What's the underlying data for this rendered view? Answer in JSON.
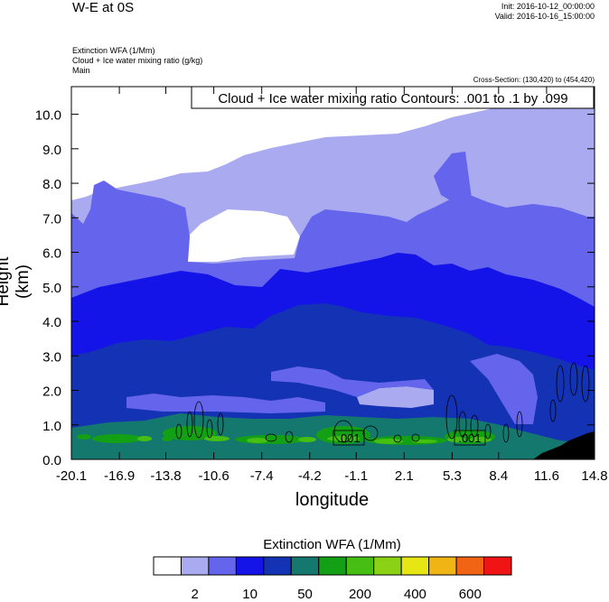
{
  "header": {
    "title": "W-E at 0S",
    "init": "Init: 2016-10-12_00:00:00",
    "valid": "Valid: 2016-10-16_15:00:00",
    "field1": "Extinction WFA   (1/Mm)",
    "field2": "Cloud + Ice water mixing ratio   (g/kg)",
    "field3": "Main",
    "cross_section": "Cross-Section: (130,420) to (454,420)"
  },
  "chart_data": {
    "type": "heatmap",
    "title": "W-E at 0S",
    "xlabel": "longitude",
    "ylabel": "Height (km)",
    "x_ticks": [
      "-20.1",
      "-16.9",
      "-13.8",
      "-10.6",
      "-7.4",
      "-4.2",
      "-1.1",
      "2.1",
      "5.3",
      "8.4",
      "11.6",
      "14.8"
    ],
    "y_ticks": [
      "0.0",
      "1.0",
      "2.0",
      "3.0",
      "4.0",
      "5.0",
      "6.0",
      "7.0",
      "8.0",
      "9.0",
      "10.0"
    ],
    "xlim": [
      -20.1,
      14.8
    ],
    "ylim": [
      0,
      10.8
    ],
    "contour_annotation": "Cloud + Ice water mixing ratio Contours: .001 to .1 by .099",
    "contour_labels": [
      ".001",
      ".001"
    ],
    "colorbar": {
      "title": "Extinction WFA  (1/Mm)",
      "tick_labels": [
        "2",
        "10",
        "50",
        "200",
        "400",
        "600"
      ],
      "colors": [
        "#ffffff",
        "#aaaaf0",
        "#6464ec",
        "#1414e8",
        "#1432b4",
        "#14786e",
        "#14a014",
        "#46be14",
        "#8cd214",
        "#e6e614",
        "#f0b414",
        "#f06414",
        "#f01414"
      ]
    }
  }
}
